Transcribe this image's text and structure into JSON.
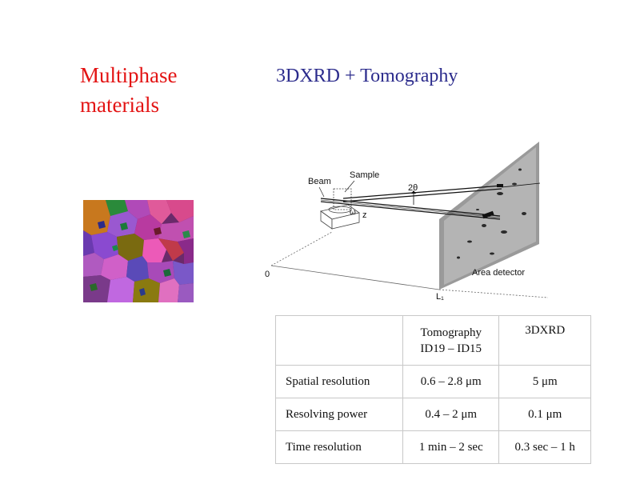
{
  "slide": {
    "title_line1": "Multiphase",
    "title_line2": "materials",
    "subtitle": "3DXRD + Tomography"
  },
  "diagram": {
    "beam": "Beam",
    "sample": "Sample",
    "two_theta": "2θ",
    "omega": "ω",
    "z": "z",
    "origin": "0",
    "detector": "Area detector",
    "distance": "L₁"
  },
  "table": {
    "col1_line1": "Tomography",
    "col1_line2": "ID19 – ID15",
    "col2": "3DXRD",
    "rows": [
      {
        "label": "Spatial resolution",
        "tomo": "0.6 – 2.8 μm",
        "xrd": "5 μm"
      },
      {
        "label": "Resolving power",
        "tomo": "0.4 – 2 μm",
        "xrd": "0.1 μm"
      },
      {
        "label": "Time resolution",
        "tomo": "1 min – 2 sec",
        "xrd": "0.3 sec – 1 h"
      }
    ]
  },
  "colors": {
    "title": "#e31414",
    "subtitle": "#2b2b8c"
  }
}
